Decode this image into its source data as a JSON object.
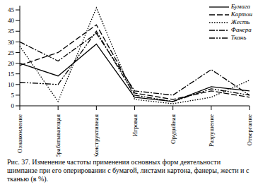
{
  "chart_data": {
    "type": "line",
    "title": "Рис. 37. Изменение частоты применения основных форм деятельности шимпанзе при его оперировании с бумагой, листами картона, фанеры, жести и с тканью (в %).",
    "categories": [
      "Ознакомление",
      "Обрабатывающая",
      "Конструктивная",
      "Игровая",
      "Орудийная",
      "Разрушение",
      "Отвергание"
    ],
    "series": [
      {
        "name": "Бумага",
        "color": "#000000",
        "line_style": "solid",
        "values": [
          20,
          14,
          29,
          4,
          2,
          9,
          7
        ]
      },
      {
        "name": "Картон",
        "color": "#000000",
        "line_style": "dashed",
        "values": [
          19,
          25,
          38,
          6,
          3,
          7,
          4
        ]
      },
      {
        "name": "Жесть",
        "color": "#000000",
        "line_style": "dotted",
        "values": [
          28,
          2,
          46,
          3,
          1,
          4,
          12
        ]
      },
      {
        "name": "Фанера",
        "color": "#000000",
        "line_style": "dashdot",
        "values": [
          30,
          21,
          34,
          7,
          5,
          17,
          5
        ]
      },
      {
        "name": "Ткань",
        "color": "#000000",
        "line_style": "dashdotdot",
        "values": [
          11,
          10,
          35,
          5,
          2,
          8,
          5
        ]
      }
    ],
    "ylim": [
      0,
      47
    ],
    "yticks": [
      0,
      5,
      10,
      15,
      20,
      25,
      30,
      35,
      40,
      45
    ],
    "grid": false,
    "legend": "upper right"
  }
}
